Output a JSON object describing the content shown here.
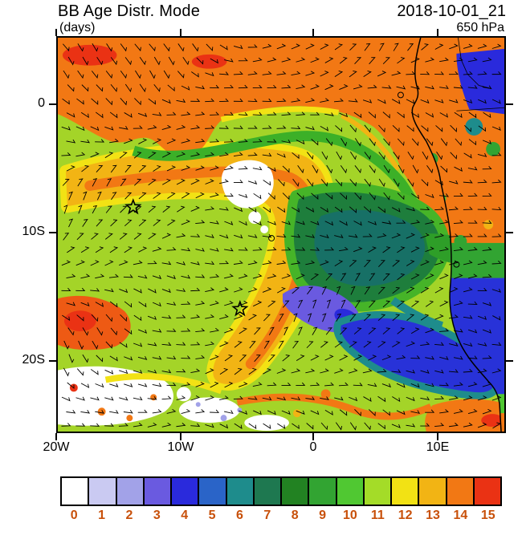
{
  "header": {
    "title": "BB Age Distr. Mode",
    "units_label": "(days)",
    "datetime": "2018-10-01_21",
    "level": "650 hPa"
  },
  "axes": {
    "y_ticks": [
      "0",
      "10S",
      "20S"
    ],
    "x_ticks": [
      "20W",
      "10W",
      "0",
      "10E"
    ]
  },
  "chart_data": {
    "type": "heatmap",
    "title": "BB Age Distr. Mode",
    "units": "days",
    "datetime": "2018-10-01_21",
    "pressure_level": "650 hPa",
    "region": "South Atlantic and western Africa",
    "lon_ticks": [
      "20W",
      "10W",
      "0",
      "10E"
    ],
    "lat_ticks": [
      "0",
      "10S",
      "20S"
    ],
    "lon_range_deg": [
      -20,
      15.5
    ],
    "lat_range_deg": [
      -25.5,
      5.3
    ],
    "colorbar": {
      "values": [
        0,
        1,
        2,
        3,
        4,
        5,
        6,
        7,
        8,
        9,
        10,
        11,
        12,
        13,
        14,
        15
      ],
      "colors": [
        "#ffffff",
        "#cacaf2",
        "#a2a2e8",
        "#6a5ae0",
        "#2a2adc",
        "#2a64c8",
        "#1e8c8c",
        "#1e7850",
        "#228222",
        "#32a432",
        "#50c832",
        "#a4dc28",
        "#f2e214",
        "#f2b414",
        "#f27814",
        "#ea3214"
      ],
      "label_color": "#c8500a"
    },
    "overlay": "wind barbs",
    "markers": [
      {
        "type": "star",
        "lon_deg": -14,
        "lat_deg": -8
      },
      {
        "type": "star",
        "lon_deg": -5.5,
        "lat_deg": -16
      }
    ],
    "features": [
      "Oldest air (mode 14-15 days, orange/red) across the north near 0-5N and along the African coast",
      "Broad 11-day (yellow-green) background over the central South Atlantic",
      "Comma-shaped 12-14 day plume arcing from ~8S,15W down to ~20S,7W",
      "Young 4-8 day air (blue/teal/dark green) pocket near 10-18S, 0-10E",
      "3-4 day (purple/blue) filament near 15-16S, 5W-0",
      "Fresh 0-1 day (white) patches near 8S,3W and in the southwest corner"
    ]
  }
}
